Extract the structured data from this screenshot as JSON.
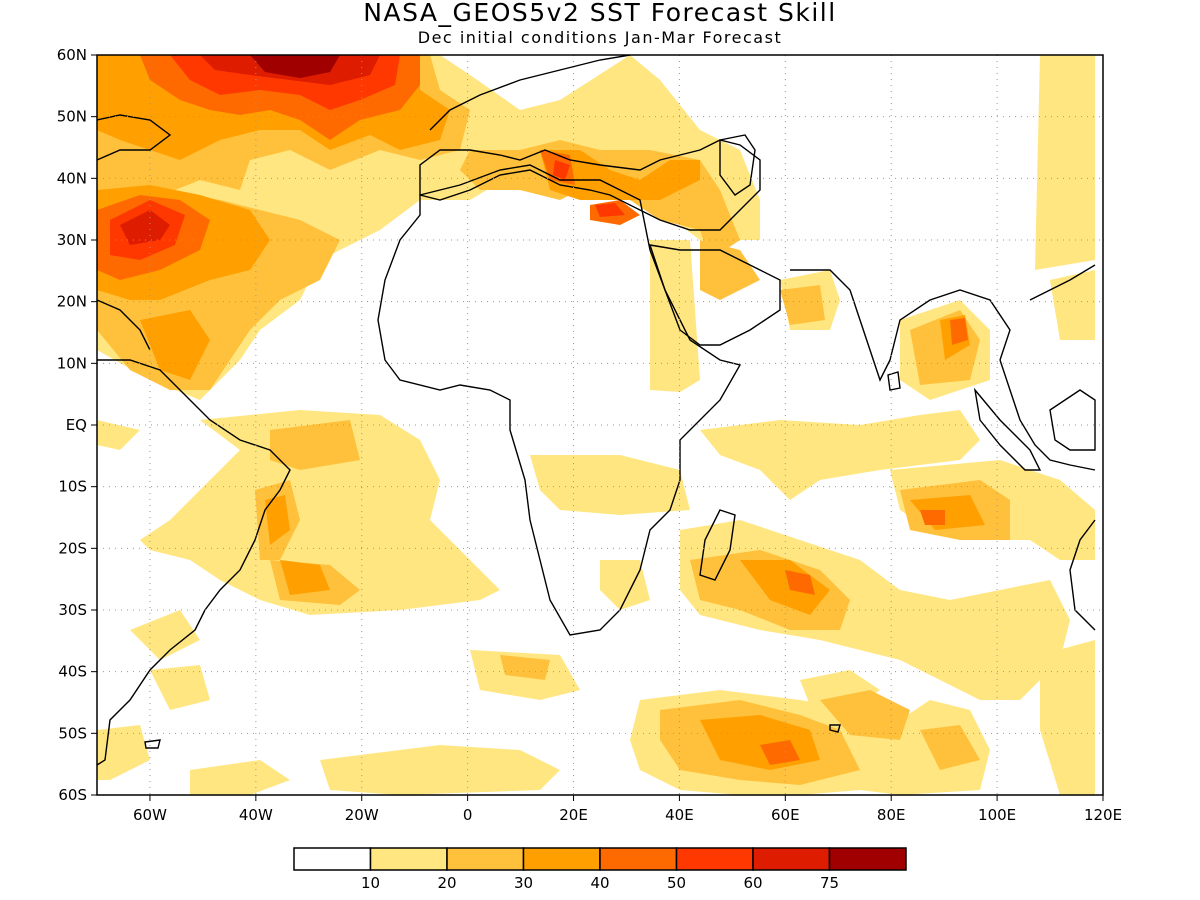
{
  "title": "NASA_GEOS5v2 SST Forecast Skill",
  "subtitle": "Dec initial conditions  Jan-Mar Forecast",
  "map": {
    "lon_range": [
      -70,
      120
    ],
    "lat_range": [
      -60,
      60
    ],
    "lat_labels": [
      "60N",
      "50N",
      "40N",
      "30N",
      "20N",
      "10N",
      "EQ",
      "10S",
      "20S",
      "30S",
      "40S",
      "50S",
      "60S"
    ],
    "lon_labels": [
      "60W",
      "40W",
      "20W",
      "0",
      "20E",
      "40E",
      "60E",
      "80E",
      "100E",
      "120E"
    ],
    "grid": true
  },
  "colorbar": {
    "colors": [
      "#ffffff",
      "#ffe680",
      "#ffc03c",
      "#ffa000",
      "#ff6a00",
      "#ff3800",
      "#dd1c00",
      "#a00000"
    ],
    "labels": [
      "10",
      "20",
      "30",
      "40",
      "50",
      "60",
      "75"
    ]
  }
}
